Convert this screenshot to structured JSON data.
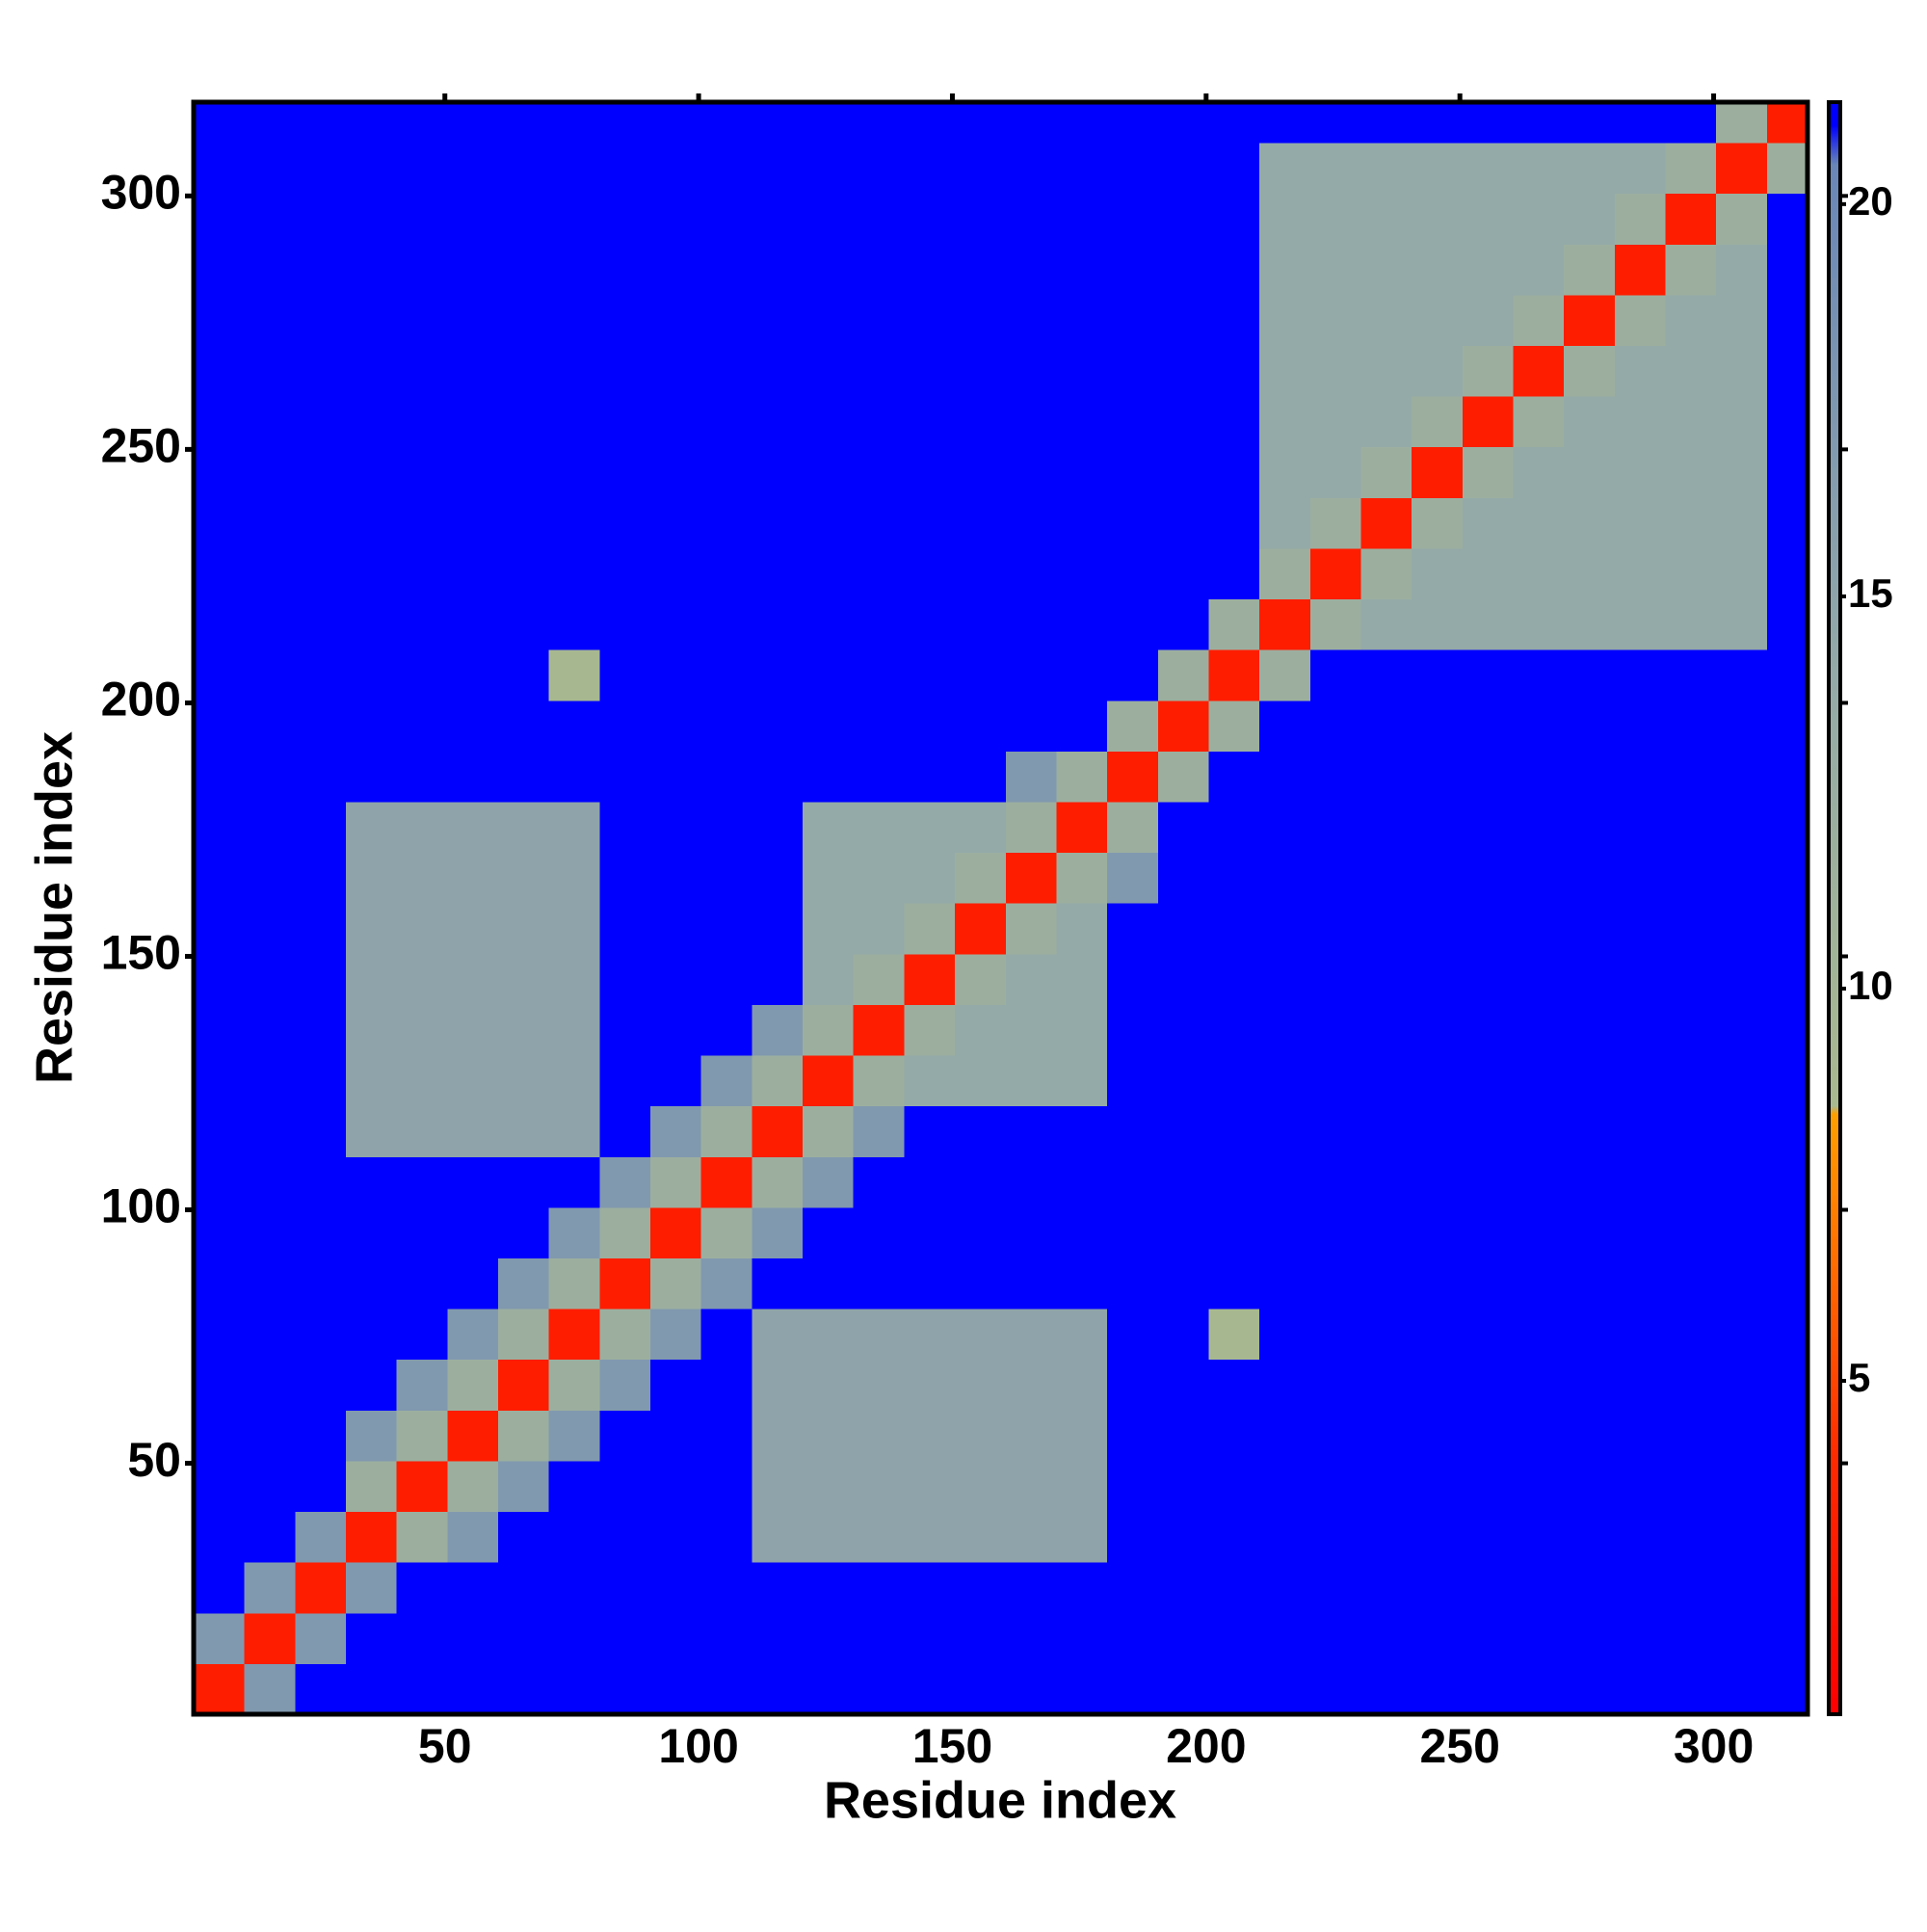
{
  "chart_data": {
    "type": "heatmap",
    "x_label": "Residue index",
    "y_label": "Residue index",
    "xbins": [
      0.5,
      10.5,
      20.5,
      30.5,
      40.5,
      50.5,
      60.5,
      70.5,
      80.5,
      90.5,
      100.5,
      110.5,
      120.5,
      130.5,
      140.5,
      150.5,
      160.5,
      170.5,
      180.5,
      190.5,
      200.5,
      210.5,
      220.5,
      230.5,
      240.5,
      250.5,
      260.5,
      270.5,
      280.5,
      290.5,
      300.5,
      310.5,
      318.5
    ],
    "ybins": [
      0.5,
      10.5,
      20.5,
      30.5,
      40.5,
      50.5,
      60.5,
      70.5,
      80.5,
      90.5,
      100.5,
      110.5,
      120.5,
      130.5,
      140.5,
      150.5,
      160.5,
      170.5,
      180.5,
      190.5,
      200.5,
      210.5,
      220.5,
      230.5,
      240.5,
      250.5,
      260.5,
      270.5,
      280.5,
      290.5,
      300.5,
      310.5,
      318.5
    ],
    "xlim": [
      0.5,
      318.5
    ],
    "ylim": [
      0.5,
      318.5
    ],
    "xticks": [
      50,
      100,
      150,
      200,
      250,
      300
    ],
    "yticks": [
      50,
      100,
      150,
      200,
      250,
      300
    ],
    "clim": [
      0.75,
      21.3
    ],
    "colorbar_ticks": [
      5,
      10,
      15,
      20
    ],
    "colorscale": [
      [
        0.75,
        "#ff0000"
      ],
      [
        4,
        "#ff2a00"
      ],
      [
        8.4,
        "#ff9f00"
      ],
      [
        8.5,
        "#a9b98f"
      ],
      [
        14,
        "#94aaa8"
      ],
      [
        20.5,
        "#6a86b8"
      ],
      [
        21,
        "#0000ff"
      ]
    ],
    "z": [
      [
        3,
        17,
        21,
        21,
        21,
        21,
        21,
        21,
        21,
        21,
        21,
        21,
        21,
        21,
        21,
        21,
        21,
        21,
        21,
        21,
        21,
        21,
        21,
        21,
        21,
        21,
        21,
        21,
        21,
        21,
        21,
        21
      ],
      [
        17,
        3,
        17,
        21,
        21,
        21,
        21,
        21,
        21,
        21,
        21,
        21,
        21,
        21,
        21,
        21,
        21,
        21,
        21,
        21,
        21,
        21,
        21,
        21,
        21,
        21,
        21,
        21,
        21,
        21,
        21,
        21
      ],
      [
        21,
        17,
        3,
        17,
        21,
        21,
        21,
        21,
        21,
        21,
        21,
        21,
        21,
        21,
        21,
        21,
        21,
        21,
        21,
        21,
        21,
        21,
        21,
        21,
        21,
        21,
        21,
        21,
        21,
        21,
        21,
        21
      ],
      [
        21,
        21,
        17,
        3,
        12,
        17,
        21,
        21,
        21,
        21,
        21,
        15,
        15,
        15,
        15,
        15,
        15,
        15,
        21,
        21,
        21,
        21,
        21,
        21,
        21,
        21,
        21,
        21,
        21,
        21,
        21,
        21
      ],
      [
        21,
        21,
        21,
        12,
        3,
        12,
        17,
        21,
        21,
        21,
        21,
        15,
        15,
        15,
        15,
        15,
        15,
        15,
        21,
        21,
        21,
        21,
        21,
        21,
        21,
        21,
        21,
        21,
        21,
        21,
        21,
        21
      ],
      [
        21,
        21,
        21,
        17,
        12,
        3,
        12,
        17,
        21,
        21,
        21,
        15,
        15,
        15,
        15,
        15,
        15,
        15,
        21,
        21,
        21,
        21,
        21,
        21,
        21,
        21,
        21,
        21,
        21,
        21,
        21,
        21
      ],
      [
        21,
        21,
        21,
        21,
        17,
        12,
        3,
        12,
        17,
        21,
        21,
        15,
        15,
        15,
        15,
        15,
        15,
        15,
        21,
        21,
        21,
        21,
        21,
        21,
        21,
        21,
        21,
        21,
        21,
        21,
        21,
        21
      ],
      [
        21,
        21,
        21,
        21,
        21,
        17,
        12,
        3,
        12,
        17,
        21,
        15,
        15,
        15,
        15,
        15,
        15,
        15,
        21,
        21,
        9,
        21,
        21,
        21,
        21,
        21,
        21,
        21,
        21,
        21,
        21,
        21
      ],
      [
        21,
        21,
        21,
        21,
        21,
        21,
        17,
        12,
        3,
        12,
        17,
        21,
        21,
        21,
        21,
        21,
        21,
        21,
        21,
        21,
        21,
        21,
        21,
        21,
        21,
        21,
        21,
        21,
        21,
        21,
        21,
        21
      ],
      [
        21,
        21,
        21,
        21,
        21,
        21,
        21,
        17,
        12,
        3,
        12,
        17,
        21,
        21,
        21,
        21,
        21,
        21,
        21,
        21,
        21,
        21,
        21,
        21,
        21,
        21,
        21,
        21,
        21,
        21,
        21,
        21
      ],
      [
        21,
        21,
        21,
        21,
        21,
        21,
        21,
        21,
        17,
        12,
        3,
        12,
        17,
        21,
        21,
        21,
        21,
        21,
        21,
        21,
        21,
        21,
        21,
        21,
        21,
        21,
        21,
        21,
        21,
        21,
        21,
        21
      ],
      [
        21,
        21,
        21,
        15,
        15,
        15,
        15,
        15,
        21,
        17,
        12,
        3,
        12,
        17,
        21,
        21,
        21,
        21,
        21,
        21,
        21,
        21,
        21,
        21,
        21,
        21,
        21,
        21,
        21,
        21,
        21,
        21
      ],
      [
        21,
        21,
        21,
        15,
        15,
        15,
        15,
        15,
        21,
        21,
        17,
        12,
        3,
        12,
        14,
        14,
        14,
        14,
        21,
        21,
        21,
        21,
        21,
        21,
        21,
        21,
        21,
        21,
        21,
        21,
        21,
        21
      ],
      [
        21,
        21,
        21,
        15,
        15,
        15,
        15,
        15,
        21,
        21,
        21,
        17,
        12,
        3,
        12,
        14,
        14,
        14,
        21,
        21,
        21,
        21,
        21,
        21,
        21,
        21,
        21,
        21,
        21,
        21,
        21,
        21
      ],
      [
        21,
        21,
        21,
        15,
        15,
        15,
        15,
        15,
        21,
        21,
        21,
        21,
        14,
        12,
        3,
        12,
        14,
        14,
        21,
        21,
        21,
        21,
        21,
        21,
        21,
        21,
        21,
        21,
        21,
        21,
        21,
        21
      ],
      [
        21,
        21,
        21,
        15,
        15,
        15,
        15,
        15,
        21,
        21,
        21,
        21,
        14,
        14,
        12,
        3,
        12,
        14,
        21,
        21,
        21,
        21,
        21,
        21,
        21,
        21,
        21,
        21,
        21,
        21,
        21,
        21
      ],
      [
        21,
        21,
        21,
        15,
        15,
        15,
        15,
        15,
        21,
        21,
        21,
        21,
        14,
        14,
        14,
        12,
        3,
        12,
        17,
        21,
        21,
        21,
        21,
        21,
        21,
        21,
        21,
        21,
        21,
        21,
        21,
        21
      ],
      [
        21,
        21,
        21,
        15,
        15,
        15,
        15,
        15,
        21,
        21,
        21,
        21,
        14,
        14,
        14,
        14,
        12,
        3,
        12,
        21,
        21,
        21,
        21,
        21,
        21,
        21,
        21,
        21,
        21,
        21,
        21,
        21
      ],
      [
        21,
        21,
        21,
        21,
        21,
        21,
        21,
        21,
        21,
        21,
        21,
        21,
        21,
        21,
        21,
        21,
        17,
        12,
        3,
        12,
        21,
        21,
        21,
        21,
        21,
        21,
        21,
        21,
        21,
        21,
        21,
        21
      ],
      [
        21,
        21,
        21,
        21,
        21,
        21,
        21,
        21,
        21,
        21,
        21,
        21,
        21,
        21,
        21,
        21,
        21,
        21,
        12,
        3,
        12,
        21,
        21,
        21,
        21,
        21,
        21,
        21,
        21,
        21,
        21,
        21
      ],
      [
        21,
        21,
        21,
        21,
        21,
        21,
        21,
        9,
        21,
        21,
        21,
        21,
        21,
        21,
        21,
        21,
        21,
        21,
        21,
        12,
        3,
        12,
        21,
        21,
        21,
        21,
        21,
        21,
        21,
        21,
        21,
        21
      ],
      [
        21,
        21,
        21,
        21,
        21,
        21,
        21,
        21,
        21,
        21,
        21,
        21,
        21,
        21,
        21,
        21,
        21,
        21,
        21,
        21,
        12,
        3,
        12,
        14,
        14,
        14,
        14,
        14,
        14,
        14,
        14,
        21
      ],
      [
        21,
        21,
        21,
        21,
        21,
        21,
        21,
        21,
        21,
        21,
        21,
        21,
        21,
        21,
        21,
        21,
        21,
        21,
        21,
        21,
        21,
        12,
        3,
        12,
        14,
        14,
        14,
        14,
        14,
        14,
        14,
        21
      ],
      [
        21,
        21,
        21,
        21,
        21,
        21,
        21,
        21,
        21,
        21,
        21,
        21,
        21,
        21,
        21,
        21,
        21,
        21,
        21,
        21,
        21,
        14,
        12,
        3,
        12,
        14,
        14,
        14,
        14,
        14,
        14,
        21
      ],
      [
        21,
        21,
        21,
        21,
        21,
        21,
        21,
        21,
        21,
        21,
        21,
        21,
        21,
        21,
        21,
        21,
        21,
        21,
        21,
        21,
        21,
        14,
        14,
        12,
        3,
        12,
        14,
        14,
        14,
        14,
        14,
        21
      ],
      [
        21,
        21,
        21,
        21,
        21,
        21,
        21,
        21,
        21,
        21,
        21,
        21,
        21,
        21,
        21,
        21,
        21,
        21,
        21,
        21,
        21,
        14,
        14,
        14,
        12,
        3,
        12,
        14,
        14,
        14,
        14,
        21
      ],
      [
        21,
        21,
        21,
        21,
        21,
        21,
        21,
        21,
        21,
        21,
        21,
        21,
        21,
        21,
        21,
        21,
        21,
        21,
        21,
        21,
        21,
        14,
        14,
        14,
        14,
        12,
        3,
        12,
        14,
        14,
        14,
        21
      ],
      [
        21,
        21,
        21,
        21,
        21,
        21,
        21,
        21,
        21,
        21,
        21,
        21,
        21,
        21,
        21,
        21,
        21,
        21,
        21,
        21,
        21,
        14,
        14,
        14,
        14,
        14,
        12,
        3,
        12,
        14,
        14,
        21
      ],
      [
        21,
        21,
        21,
        21,
        21,
        21,
        21,
        21,
        21,
        21,
        21,
        21,
        21,
        21,
        21,
        21,
        21,
        21,
        21,
        21,
        21,
        14,
        14,
        14,
        14,
        14,
        14,
        12,
        3,
        12,
        14,
        21
      ],
      [
        21,
        21,
        21,
        21,
        21,
        21,
        21,
        21,
        21,
        21,
        21,
        21,
        21,
        21,
        21,
        21,
        21,
        21,
        21,
        21,
        21,
        14,
        14,
        14,
        14,
        14,
        14,
        14,
        12,
        3,
        12,
        21
      ],
      [
        21,
        21,
        21,
        21,
        21,
        21,
        21,
        21,
        21,
        21,
        21,
        21,
        21,
        21,
        21,
        21,
        21,
        21,
        21,
        21,
        21,
        14,
        14,
        14,
        14,
        14,
        14,
        14,
        14,
        12,
        3,
        12
      ],
      [
        21,
        21,
        21,
        21,
        21,
        21,
        21,
        21,
        21,
        21,
        21,
        21,
        21,
        21,
        21,
        21,
        21,
        21,
        21,
        21,
        21,
        21,
        21,
        21,
        21,
        21,
        21,
        21,
        21,
        21,
        12,
        3
      ]
    ]
  }
}
